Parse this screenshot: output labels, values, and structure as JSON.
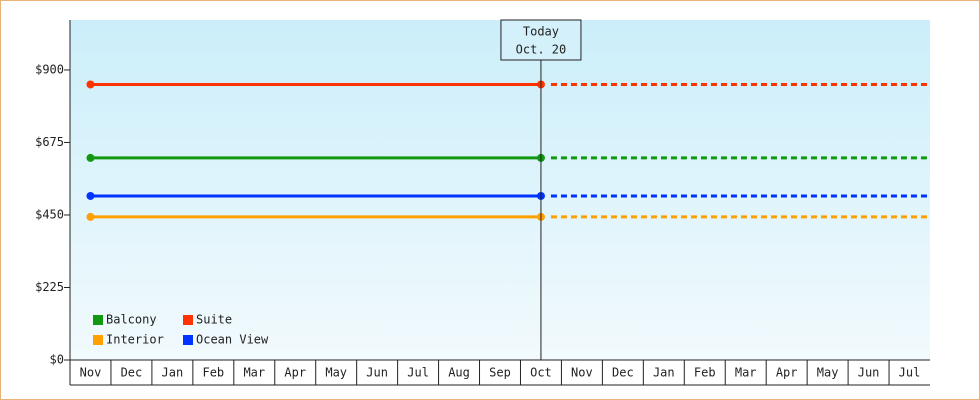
{
  "chart_data": {
    "type": "line",
    "annotation": [
      "Today",
      "Oct. 20"
    ],
    "categories": [
      "Nov",
      "Dec",
      "Jan",
      "Feb",
      "Mar",
      "Apr",
      "May",
      "Jun",
      "Jul",
      "Aug",
      "Sep",
      "Oct",
      "Nov",
      "Dec",
      "Jan",
      "Feb",
      "Mar",
      "Apr",
      "May",
      "Jun",
      "Jul"
    ],
    "series": [
      {
        "name": "Balcony",
        "color": "#119911",
        "values": [
          627,
          627,
          627,
          627,
          627,
          627,
          627,
          627,
          627,
          627,
          627,
          627,
          null,
          null,
          null,
          null,
          null,
          null,
          null,
          null,
          null
        ]
      },
      {
        "name": "Suite",
        "color": "#ff3300",
        "values": [
          855,
          855,
          855,
          855,
          855,
          855,
          855,
          855,
          855,
          855,
          855,
          855,
          null,
          null,
          null,
          null,
          null,
          null,
          null,
          null,
          null
        ]
      },
      {
        "name": "Interior",
        "color": "#ffa000",
        "values": [
          444,
          444,
          444,
          444,
          444,
          444,
          444,
          444,
          444,
          444,
          444,
          444,
          null,
          null,
          null,
          null,
          null,
          null,
          null,
          null,
          null
        ]
      },
      {
        "name": "Ocean View",
        "color": "#0033ff",
        "values": [
          509,
          509,
          509,
          509,
          509,
          509,
          509,
          509,
          509,
          509,
          509,
          509,
          null,
          null,
          null,
          null,
          null,
          null,
          null,
          null,
          null
        ]
      }
    ],
    "ylim": [
      0,
      1055
    ],
    "yticks": [
      {
        "value": 0,
        "label": "$0"
      },
      {
        "value": 225,
        "label": "$225"
      },
      {
        "value": 450,
        "label": "$450"
      },
      {
        "value": 675,
        "label": "$675"
      },
      {
        "value": 900,
        "label": "$900"
      }
    ],
    "legend": "lower left"
  }
}
